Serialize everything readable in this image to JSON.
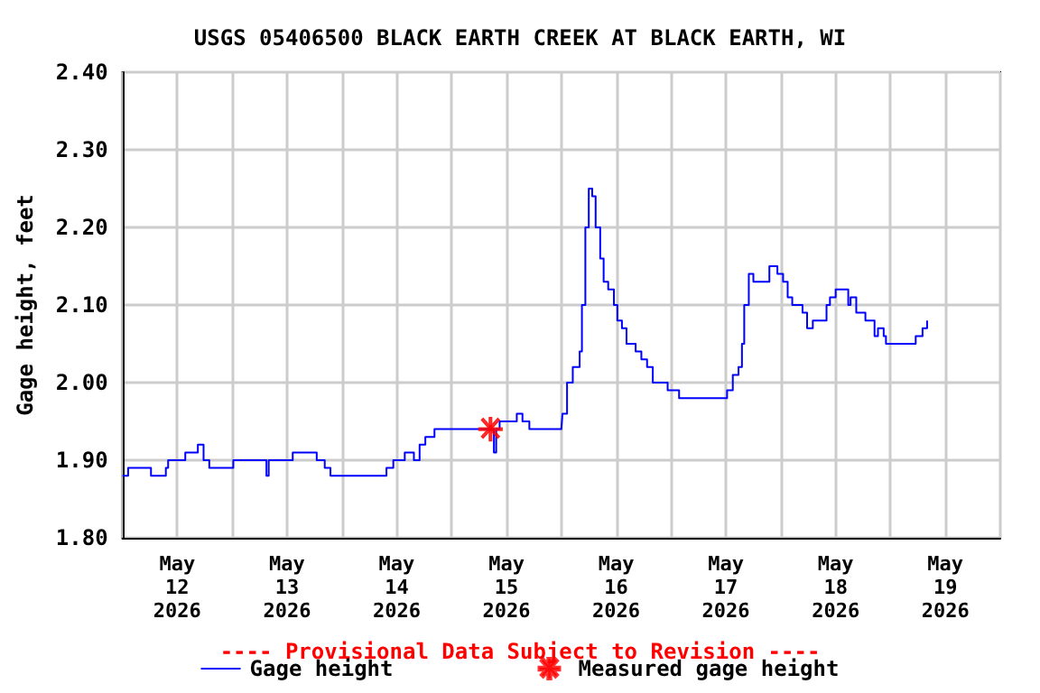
{
  "chart_data": {
    "type": "step",
    "title": "USGS 05406500 BLACK EARTH CREEK AT BLACK EARTH, WI",
    "ylabel": "Gage height, feet",
    "annotations": [
      "---- Provisional Data Subject to Revision ----"
    ],
    "xlim": [
      "2026-05-12T00:00",
      "2026-05-20T00:00"
    ],
    "xticks": [
      {
        "value": "2026-05-12T00:00",
        "label": null
      },
      {
        "value": "2026-05-12T12:00",
        "label": "May\n12\n2026"
      },
      {
        "value": "2026-05-13T00:00",
        "label": null
      },
      {
        "value": "2026-05-13T12:00",
        "label": "May\n13\n2026"
      },
      {
        "value": "2026-05-14T00:00",
        "label": null
      },
      {
        "value": "2026-05-14T12:00",
        "label": "May\n14\n2026"
      },
      {
        "value": "2026-05-15T00:00",
        "label": null
      },
      {
        "value": "2026-05-15T12:00",
        "label": "May\n15\n2026"
      },
      {
        "value": "2026-05-16T00:00",
        "label": null
      },
      {
        "value": "2026-05-16T12:00",
        "label": "May\n16\n2026"
      },
      {
        "value": "2026-05-17T00:00",
        "label": null
      },
      {
        "value": "2026-05-17T12:00",
        "label": "May\n17\n2026"
      },
      {
        "value": "2026-05-18T00:00",
        "label": null
      },
      {
        "value": "2026-05-18T12:00",
        "label": "May\n18\n2026"
      },
      {
        "value": "2026-05-19T00:00",
        "label": null
      },
      {
        "value": "2026-05-19T12:00",
        "label": "May\n19\n2026"
      },
      {
        "value": "2026-05-20T00:00",
        "label": null
      }
    ],
    "ylim": [
      1.8,
      2.4
    ],
    "yticks": [
      {
        "value": 1.8,
        "label": "1.80"
      },
      {
        "value": 1.9,
        "label": "1.90"
      },
      {
        "value": 2.0,
        "label": "2.00"
      },
      {
        "value": 2.1,
        "label": "2.10"
      },
      {
        "value": 2.2,
        "label": "2.20"
      },
      {
        "value": 2.3,
        "label": "2.30"
      },
      {
        "value": 2.4,
        "label": "2.40"
      }
    ],
    "grid": true,
    "legend": "bottom",
    "series": [
      {
        "name": "Gage height",
        "color": "#0000ff",
        "marker": "none",
        "line_style": "solid",
        "x": [
          "2026-05-12T00:00",
          "2026-05-12T01:15",
          "2026-05-12T06:15",
          "2026-05-12T09:30",
          "2026-05-12T10:00",
          "2026-05-12T13:45",
          "2026-05-12T16:30",
          "2026-05-12T17:45",
          "2026-05-12T19:00",
          "2026-05-13T00:15",
          "2026-05-13T07:30",
          "2026-05-13T08:00",
          "2026-05-13T13:15",
          "2026-05-13T18:30",
          "2026-05-13T20:15",
          "2026-05-13T21:30",
          "2026-05-14T08:30",
          "2026-05-14T09:45",
          "2026-05-14T11:15",
          "2026-05-14T13:45",
          "2026-05-14T15:45",
          "2026-05-14T17:00",
          "2026-05-14T18:15",
          "2026-05-14T20:15",
          "2026-05-15T04:00",
          "2026-05-15T09:15",
          "2026-05-15T09:45",
          "2026-05-15T10:30",
          "2026-05-15T14:15",
          "2026-05-15T15:30",
          "2026-05-15T17:00",
          "2026-05-16T00:00",
          "2026-05-16T00:15",
          "2026-05-16T01:15",
          "2026-05-16T02:30",
          "2026-05-16T04:00",
          "2026-05-16T04:30",
          "2026-05-16T05:15",
          "2026-05-16T06:00",
          "2026-05-16T06:45",
          "2026-05-16T07:30",
          "2026-05-16T08:30",
          "2026-05-16T09:15",
          "2026-05-16T10:15",
          "2026-05-16T11:30",
          "2026-05-16T12:15",
          "2026-05-16T13:15",
          "2026-05-16T14:15",
          "2026-05-16T16:15",
          "2026-05-16T17:30",
          "2026-05-16T18:45",
          "2026-05-16T20:00",
          "2026-05-16T23:15",
          "2026-05-17T01:45",
          "2026-05-17T09:45",
          "2026-05-17T12:15",
          "2026-05-17T13:30",
          "2026-05-17T14:45",
          "2026-05-17T15:30",
          "2026-05-17T16:00",
          "2026-05-17T17:00",
          "2026-05-17T18:00",
          "2026-05-17T20:00",
          "2026-05-17T21:30",
          "2026-05-17T22:45",
          "2026-05-17T23:15",
          "2026-05-18T00:30",
          "2026-05-18T01:30",
          "2026-05-18T02:30",
          "2026-05-18T04:45",
          "2026-05-18T05:45",
          "2026-05-18T07:00",
          "2026-05-18T09:00",
          "2026-05-18T10:00",
          "2026-05-18T10:45",
          "2026-05-18T12:00",
          "2026-05-18T13:30",
          "2026-05-18T14:45",
          "2026-05-18T15:15",
          "2026-05-18T16:30",
          "2026-05-18T18:30",
          "2026-05-18T19:45",
          "2026-05-18T20:30",
          "2026-05-18T21:15",
          "2026-05-18T22:30",
          "2026-05-18T23:00",
          "2026-05-19T01:45",
          "2026-05-19T05:30",
          "2026-05-19T07:00",
          "2026-05-19T08:00"
        ],
        "values": [
          1.88,
          1.89,
          1.88,
          1.89,
          1.9,
          1.91,
          1.92,
          1.9,
          1.89,
          1.9,
          1.88,
          1.9,
          1.91,
          1.9,
          1.89,
          1.88,
          1.88,
          1.89,
          1.9,
          1.91,
          1.9,
          1.92,
          1.93,
          1.94,
          1.94,
          1.91,
          1.94,
          1.95,
          1.96,
          1.95,
          1.94,
          1.94,
          1.96,
          2.0,
          2.02,
          2.04,
          2.1,
          2.2,
          2.25,
          2.24,
          2.2,
          2.16,
          2.13,
          2.12,
          2.1,
          2.08,
          2.07,
          2.05,
          2.04,
          2.03,
          2.02,
          2.0,
          1.99,
          1.98,
          1.98,
          1.99,
          2.01,
          2.02,
          2.05,
          2.1,
          2.14,
          2.13,
          2.13,
          2.15,
          2.15,
          2.14,
          2.13,
          2.11,
          2.1,
          2.09,
          2.07,
          2.08,
          2.08,
          2.1,
          2.11,
          2.12,
          2.12,
          2.1,
          2.11,
          2.09,
          2.08,
          2.08,
          2.06,
          2.07,
          2.06,
          2.05,
          2.05,
          2.06,
          2.07,
          2.08
        ]
      },
      {
        "name": "Measured gage height",
        "type": "scatter",
        "color": "#ff0000",
        "marker": "star",
        "x": [
          "2026-05-15T08:30"
        ],
        "values": [
          1.94
        ]
      }
    ]
  }
}
